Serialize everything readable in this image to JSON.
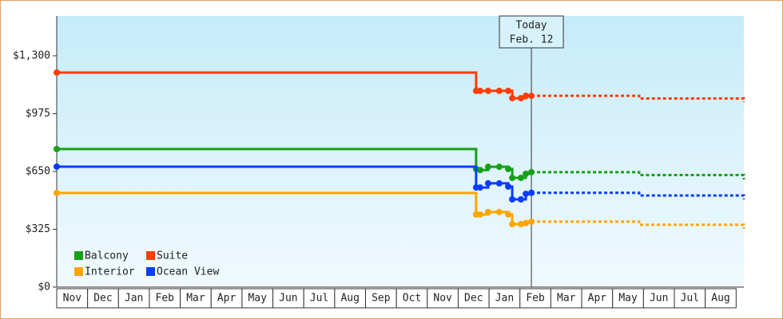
{
  "chart_data": {
    "type": "line",
    "step": true,
    "x": [
      0,
      13.58,
      13.71,
      13.97,
      14.33,
      14.62,
      14.75,
      15.03,
      15.19,
      15.37,
      18.86,
      22.25
    ],
    "xlim": [
      0,
      22.25
    ],
    "xticks": [
      {
        "value": 0.5,
        "label": "Nov"
      },
      {
        "value": 1.5,
        "label": "Dec"
      },
      {
        "value": 2.5,
        "label": "Jan"
      },
      {
        "value": 3.5,
        "label": "Feb"
      },
      {
        "value": 4.5,
        "label": "Mar"
      },
      {
        "value": 5.5,
        "label": "Apr"
      },
      {
        "value": 6.5,
        "label": "May"
      },
      {
        "value": 7.5,
        "label": "Jun"
      },
      {
        "value": 8.5,
        "label": "Jul"
      },
      {
        "value": 9.5,
        "label": "Aug"
      },
      {
        "value": 10.5,
        "label": "Sep"
      },
      {
        "value": 11.5,
        "label": "Oct"
      },
      {
        "value": 12.5,
        "label": "Nov"
      },
      {
        "value": 13.5,
        "label": "Dec"
      },
      {
        "value": 14.5,
        "label": "Jan"
      },
      {
        "value": 15.5,
        "label": "Feb"
      },
      {
        "value": 16.5,
        "label": "Mar"
      },
      {
        "value": 17.5,
        "label": "Apr"
      },
      {
        "value": 18.5,
        "label": "May"
      },
      {
        "value": 19.5,
        "label": "Jun"
      },
      {
        "value": 20.5,
        "label": "Jul"
      },
      {
        "value": 21.5,
        "label": "Aug"
      }
    ],
    "ylim": [
      0,
      1524
    ],
    "yticks": [
      {
        "value": 0,
        "label": "$0"
      },
      {
        "value": 325,
        "label": "$325"
      },
      {
        "value": 650,
        "label": "$650"
      },
      {
        "value": 975,
        "label": "$975"
      },
      {
        "value": 1300,
        "label": "$1,300"
      }
    ],
    "today": {
      "x": 15.37,
      "label": [
        "Today",
        "Feb. 12"
      ]
    },
    "legend": "lower left",
    "series": [
      {
        "name": "Balcony",
        "color": "#16a016",
        "values": [
          776,
          664,
          658,
          676,
          676,
          664,
          614,
          614,
          637,
          646,
          630,
          605
        ]
      },
      {
        "name": "Suite",
        "color": "#ff3c00",
        "values": [
          1206,
          1103,
          1103,
          1103,
          1103,
          1103,
          1062,
          1062,
          1075,
          1075,
          1060,
          1040
        ]
      },
      {
        "name": "Interior",
        "color": "#ffa500",
        "values": [
          529,
          408,
          408,
          422,
          422,
          408,
          354,
          354,
          360,
          368,
          350,
          327
        ]
      },
      {
        "name": "Ocean View",
        "color": "#0a3cff",
        "values": [
          677,
          560,
          560,
          583,
          583,
          565,
          493,
          493,
          524,
          530,
          515,
          493
        ]
      }
    ]
  }
}
